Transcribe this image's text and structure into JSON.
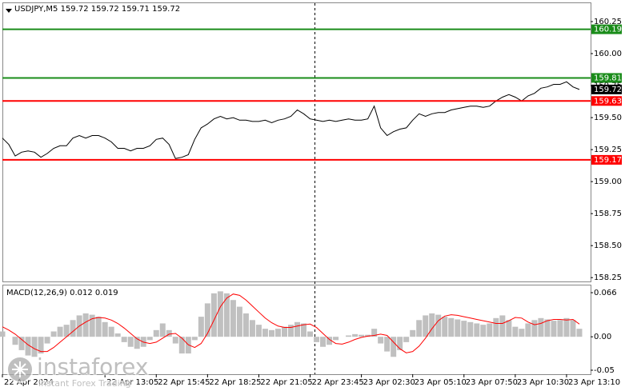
{
  "chart_data": [
    {
      "type": "line",
      "title": "USDJPY,M5  159.72 159.72 159.71 159.72",
      "x": [
        0,
        4,
        8,
        12,
        16,
        20,
        24,
        28,
        32,
        36,
        40,
        44,
        48,
        52,
        56,
        60,
        64,
        68,
        72,
        76,
        80,
        84,
        88,
        92,
        96,
        100,
        104,
        108,
        112,
        116,
        120,
        124,
        128,
        132,
        136,
        140,
        144,
        148,
        152,
        156,
        160,
        164,
        168,
        172,
        176,
        180,
        184,
        188,
        192,
        196,
        200,
        204,
        208,
        212,
        216,
        220,
        224,
        228,
        232,
        236,
        240,
        244,
        248,
        252,
        256,
        260,
        264,
        268,
        272,
        276,
        280,
        284,
        288,
        292,
        296,
        300,
        304,
        308,
        312,
        316,
        320,
        324,
        328,
        332,
        336,
        340,
        344,
        348,
        352,
        356,
        360
      ],
      "series": [
        {
          "color": "#000000",
          "values": [
            159.34,
            159.29,
            159.2,
            159.23,
            159.24,
            159.23,
            159.19,
            159.22,
            159.26,
            159.28,
            159.28,
            159.34,
            159.36,
            159.34,
            159.36,
            159.36,
            159.34,
            159.31,
            159.26,
            159.26,
            159.24,
            159.26,
            159.26,
            159.28,
            159.33,
            159.34,
            159.29,
            159.18,
            159.19,
            159.21,
            159.33,
            159.42,
            159.45,
            159.49,
            159.51,
            159.49,
            159.5,
            159.48,
            159.48,
            159.47,
            159.47,
            159.48,
            159.46,
            159.48,
            159.49,
            159.51,
            159.56,
            159.53,
            159.49,
            159.48,
            159.47,
            159.48,
            159.47,
            159.48,
            159.49,
            159.48,
            159.48,
            159.49,
            159.59,
            159.42,
            159.36,
            159.39,
            159.41,
            159.42,
            159.48,
            159.53,
            159.51,
            159.53,
            159.54,
            159.54,
            159.56,
            159.57,
            159.58,
            159.59,
            159.59,
            159.58,
            159.59,
            159.63,
            159.66,
            159.68,
            159.66,
            159.63,
            159.67,
            159.69,
            159.73,
            159.74,
            159.76,
            159.76,
            159.78,
            159.74,
            159.72
          ]
        }
      ],
      "levels": [
        {
          "value": 160.19,
          "color": "#1a8c1a"
        },
        {
          "value": 159.81,
          "color": "#1a8c1a"
        },
        {
          "value": 159.63,
          "color": "#ff0000"
        },
        {
          "value": 159.17,
          "color": "#ff0000"
        }
      ],
      "xlim": [
        0,
        367
      ],
      "ylim": [
        158.22,
        160.4
      ],
      "yticks": [
        160.25,
        {
          "value": 160,
          "label": "160.00"
        },
        159.75,
        {
          "value": 159.5,
          "label": "159.50"
        },
        159.25,
        {
          "value": 159,
          "label": "159.00"
        },
        158.75,
        {
          "value": 158.5,
          "label": "158.50"
        },
        158.25
      ]
    },
    {
      "type": "macd",
      "title": "MACD(12,26,9) 0.012 0.019",
      "x": [
        0,
        4,
        8,
        12,
        16,
        20,
        24,
        28,
        32,
        36,
        40,
        44,
        48,
        52,
        56,
        60,
        64,
        68,
        72,
        76,
        80,
        84,
        88,
        92,
        96,
        100,
        104,
        108,
        112,
        116,
        120,
        124,
        128,
        132,
        136,
        140,
        144,
        148,
        152,
        156,
        160,
        164,
        168,
        172,
        176,
        180,
        184,
        188,
        192,
        196,
        200,
        204,
        208,
        212,
        216,
        220,
        224,
        228,
        232,
        236,
        240,
        244,
        248,
        252,
        256,
        260,
        264,
        268,
        272,
        276,
        280,
        284,
        288,
        292,
        296,
        300,
        304,
        308,
        312,
        316,
        320,
        324,
        328,
        332,
        336,
        340,
        344,
        348,
        352,
        356,
        360
      ],
      "series": [
        {
          "style": "bar",
          "color": "#c0c0c0",
          "values": [
            0.008,
            0,
            -0.012,
            -0.02,
            -0.028,
            -0.03,
            -0.025,
            -0.01,
            0.008,
            0.015,
            0.018,
            0.025,
            0.032,
            0.035,
            0.033,
            0.03,
            0.022,
            0.015,
            0.005,
            -0.008,
            -0.015,
            -0.018,
            -0.015,
            -0.005,
            0.01,
            0.02,
            0.01,
            -0.01,
            -0.025,
            -0.025,
            -0.005,
            0.03,
            0.05,
            0.065,
            0.068,
            0.065,
            0.055,
            0.045,
            0.035,
            0.025,
            0.018,
            0.012,
            0.01,
            0.012,
            0.015,
            0.018,
            0.022,
            0.02,
            0.008,
            -0.008,
            -0.015,
            -0.012,
            -0.005,
            0,
            0.002,
            0.004,
            0.003,
            0.003,
            0.012,
            -0.01,
            -0.022,
            -0.03,
            -0.02,
            -0.008,
            0.01,
            0.025,
            0.032,
            0.035,
            0.033,
            0.03,
            0.028,
            0.026,
            0.024,
            0.022,
            0.02,
            0.018,
            0.02,
            0.028,
            0.032,
            0.025,
            0.015,
            0.012,
            0.02,
            0.025,
            0.028,
            0.026,
            0.024,
            0.025,
            0.028,
            0.025,
            0.012
          ]
        },
        {
          "style": "line",
          "color": "#ff0000",
          "values": [
            0.015,
            0.01,
            0.004,
            -0.004,
            -0.012,
            -0.018,
            -0.022,
            -0.022,
            -0.016,
            -0.008,
            0.0,
            0.008,
            0.016,
            0.022,
            0.027,
            0.029,
            0.028,
            0.025,
            0.02,
            0.013,
            0.005,
            -0.003,
            -0.008,
            -0.01,
            -0.008,
            -0.002,
            0.004,
            0.005,
            -0.002,
            -0.012,
            -0.016,
            -0.01,
            0.005,
            0.025,
            0.045,
            0.058,
            0.064,
            0.062,
            0.055,
            0.046,
            0.037,
            0.028,
            0.021,
            0.016,
            0.014,
            0.014,
            0.016,
            0.018,
            0.019,
            0.014,
            0.005,
            -0.004,
            -0.01,
            -0.011,
            -0.008,
            -0.004,
            -0.001,
            0.001,
            0.002,
            0.004,
            0.002,
            -0.008,
            -0.018,
            -0.024,
            -0.022,
            -0.014,
            -0.002,
            0.012,
            0.024,
            0.031,
            0.033,
            0.032,
            0.03,
            0.028,
            0.026,
            0.024,
            0.022,
            0.02,
            0.02,
            0.024,
            0.029,
            0.028,
            0.022,
            0.018,
            0.02,
            0.024,
            0.026,
            0.026,
            0.025,
            0.026,
            0.019
          ]
        }
      ],
      "xlim": [
        0,
        367
      ],
      "ylim": [
        -0.056,
        0.078
      ],
      "yticks": [
        0.066,
        {
          "value": 0,
          "label": "0.00"
        },
        -0.05
      ],
      "xticks": [
        {
          "value": 0,
          "label": "22 Apr 2024"
        },
        {
          "value": 64,
          "label": "22 Apr 13:05"
        },
        {
          "value": 96,
          "label": "22 Apr 15:45"
        },
        {
          "value": 128,
          "label": "22 Apr 18:25"
        },
        {
          "value": 160,
          "label": "22 Apr 21:05"
        },
        {
          "value": 192,
          "label": "22 Apr 23:45"
        },
        {
          "value": 224,
          "label": "23 Apr 02:30"
        },
        {
          "value": 256,
          "label": "23 Apr 05:10"
        },
        {
          "value": 288,
          "label": "23 Apr 07:50"
        },
        {
          "value": 320,
          "label": "23 Apr 10:30"
        },
        {
          "value": 352,
          "label": "23 Apr 13:10"
        }
      ]
    }
  ],
  "watermark": {
    "brand": "instaforex",
    "tagline": "Instant Forex Trading"
  }
}
